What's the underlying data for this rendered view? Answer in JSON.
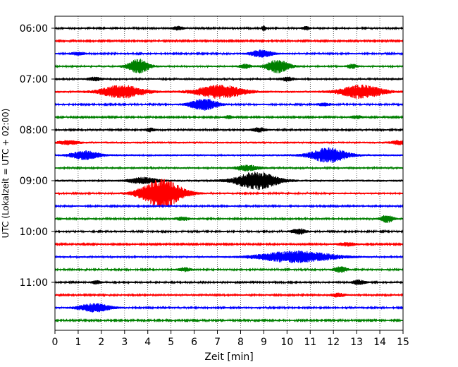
{
  "chart_data": {
    "type": "line",
    "chart_kind": "helicorder (seismogram drum plot)",
    "title": "",
    "xlabel": "Zeit  [min]",
    "ylabel": "UTC (Lokalzeit = UTC + 02:00)",
    "xlim": [
      0,
      15
    ],
    "x_ticks": [
      "0",
      "1",
      "2",
      "3",
      "4",
      "5",
      "6",
      "7",
      "8",
      "9",
      "10",
      "11",
      "12",
      "13",
      "14",
      "15"
    ],
    "x_grid": "dotted vertical lines at every minute",
    "trace_interval_min": 15,
    "trace_color_cycle": [
      "#000000",
      "#ff0000",
      "#0000ff",
      "#008000"
    ],
    "y_ticks": [
      "06:00",
      "07:00",
      "08:00",
      "09:00",
      "10:00",
      "11:00"
    ],
    "y_tick_rows": [
      0,
      4,
      8,
      12,
      16,
      20
    ],
    "traces": [
      {
        "start": "06:00",
        "color": "#000000",
        "noise": 1.2,
        "events": [
          {
            "t": 5.3,
            "amp": 2.5,
            "dur": 0.25
          },
          {
            "t": 9.0,
            "amp": 3.5,
            "dur": 0.1
          },
          {
            "t": 10.8,
            "amp": 3,
            "dur": 0.15
          }
        ]
      },
      {
        "start": "06:15",
        "color": "#ff0000",
        "noise": 1.1,
        "events": []
      },
      {
        "start": "06:30",
        "color": "#0000ff",
        "noise": 1.2,
        "events": [
          {
            "t": 1.0,
            "amp": 2,
            "dur": 0.3
          },
          {
            "t": 8.9,
            "amp": 5,
            "dur": 0.5
          }
        ]
      },
      {
        "start": "06:45",
        "color": "#008000",
        "noise": 1.3,
        "events": [
          {
            "t": 3.6,
            "amp": 10,
            "dur": 0.45
          },
          {
            "t": 8.2,
            "amp": 3,
            "dur": 0.25
          },
          {
            "t": 9.6,
            "amp": 9,
            "dur": 0.5
          },
          {
            "t": 12.8,
            "amp": 3,
            "dur": 0.2
          }
        ]
      },
      {
        "start": "07:00",
        "color": "#000000",
        "noise": 1.3,
        "events": [
          {
            "t": 1.7,
            "amp": 2.5,
            "dur": 0.3
          },
          {
            "t": 10.0,
            "amp": 2.5,
            "dur": 0.3
          }
        ]
      },
      {
        "start": "07:15",
        "color": "#ff0000",
        "noise": 1.6,
        "events": [
          {
            "t": 2.9,
            "amp": 9,
            "dur": 0.9
          },
          {
            "t": 7.1,
            "amp": 9,
            "dur": 1.0
          },
          {
            "t": 13.2,
            "amp": 9,
            "dur": 0.9
          }
        ]
      },
      {
        "start": "07:30",
        "color": "#0000ff",
        "noise": 1.2,
        "events": [
          {
            "t": 6.4,
            "amp": 8,
            "dur": 0.6
          },
          {
            "t": 11.6,
            "amp": 2,
            "dur": 0.3
          }
        ]
      },
      {
        "start": "07:45",
        "color": "#008000",
        "noise": 1.1,
        "events": [
          {
            "t": 7.5,
            "amp": 2,
            "dur": 0.2
          },
          {
            "t": 13.0,
            "amp": 2,
            "dur": 0.3
          }
        ]
      },
      {
        "start": "08:00",
        "color": "#000000",
        "noise": 1.2,
        "events": [
          {
            "t": 4.1,
            "amp": 2.5,
            "dur": 0.2
          },
          {
            "t": 8.8,
            "amp": 3,
            "dur": 0.3
          }
        ]
      },
      {
        "start": "08:15",
        "color": "#ff0000",
        "noise": 1.6,
        "events": [
          {
            "t": 0.6,
            "amp": 2.5,
            "dur": 0.4
          },
          {
            "t": 14.8,
            "amp": 2.5,
            "dur": 0.3
          }
        ]
      },
      {
        "start": "08:30",
        "color": "#0000ff",
        "noise": 1.5,
        "events": [
          {
            "t": 1.3,
            "amp": 6,
            "dur": 0.6
          },
          {
            "t": 11.8,
            "amp": 10,
            "dur": 0.8
          }
        ]
      },
      {
        "start": "08:45",
        "color": "#008000",
        "noise": 1.3,
        "events": [
          {
            "t": 8.3,
            "amp": 4,
            "dur": 0.5
          }
        ]
      },
      {
        "start": "09:00",
        "color": "#000000",
        "noise": 1.6,
        "events": [
          {
            "t": 3.8,
            "amp": 4,
            "dur": 0.6
          },
          {
            "t": 8.7,
            "amp": 12,
            "dur": 0.9
          }
        ]
      },
      {
        "start": "09:15",
        "color": "#ff0000",
        "noise": 1.3,
        "events": [
          {
            "t": 4.6,
            "amp": 20,
            "dur": 0.9
          }
        ]
      },
      {
        "start": "09:30",
        "color": "#0000ff",
        "noise": 1.2,
        "events": []
      },
      {
        "start": "09:45",
        "color": "#008000",
        "noise": 1.2,
        "events": [
          {
            "t": 5.5,
            "amp": 2.5,
            "dur": 0.3
          },
          {
            "t": 14.3,
            "amp": 5,
            "dur": 0.3
          }
        ]
      },
      {
        "start": "10:00",
        "color": "#000000",
        "noise": 1.2,
        "events": [
          {
            "t": 10.5,
            "amp": 4,
            "dur": 0.3
          }
        ]
      },
      {
        "start": "10:15",
        "color": "#ff0000",
        "noise": 1.1,
        "events": [
          {
            "t": 12.6,
            "amp": 2.5,
            "dur": 0.4
          }
        ]
      },
      {
        "start": "10:30",
        "color": "#0000ff",
        "noise": 1.3,
        "events": [
          {
            "t": 10.4,
            "amp": 8,
            "dur": 1.6
          }
        ]
      },
      {
        "start": "10:45",
        "color": "#008000",
        "noise": 1.2,
        "events": [
          {
            "t": 5.6,
            "amp": 2.5,
            "dur": 0.3
          },
          {
            "t": 12.3,
            "amp": 4,
            "dur": 0.3
          }
        ]
      },
      {
        "start": "11:00",
        "color": "#000000",
        "noise": 1.2,
        "events": [
          {
            "t": 1.8,
            "amp": 2.5,
            "dur": 0.2
          },
          {
            "t": 13.1,
            "amp": 3,
            "dur": 0.3
          }
        ]
      },
      {
        "start": "11:15",
        "color": "#ff0000",
        "noise": 1.2,
        "events": [
          {
            "t": 12.2,
            "amp": 2.5,
            "dur": 0.3
          }
        ]
      },
      {
        "start": "11:30",
        "color": "#0000ff",
        "noise": 1.2,
        "events": [
          {
            "t": 1.7,
            "amp": 6,
            "dur": 0.7
          }
        ]
      },
      {
        "start": "11:45",
        "color": "#008000",
        "noise": 1.1,
        "events": []
      }
    ]
  }
}
